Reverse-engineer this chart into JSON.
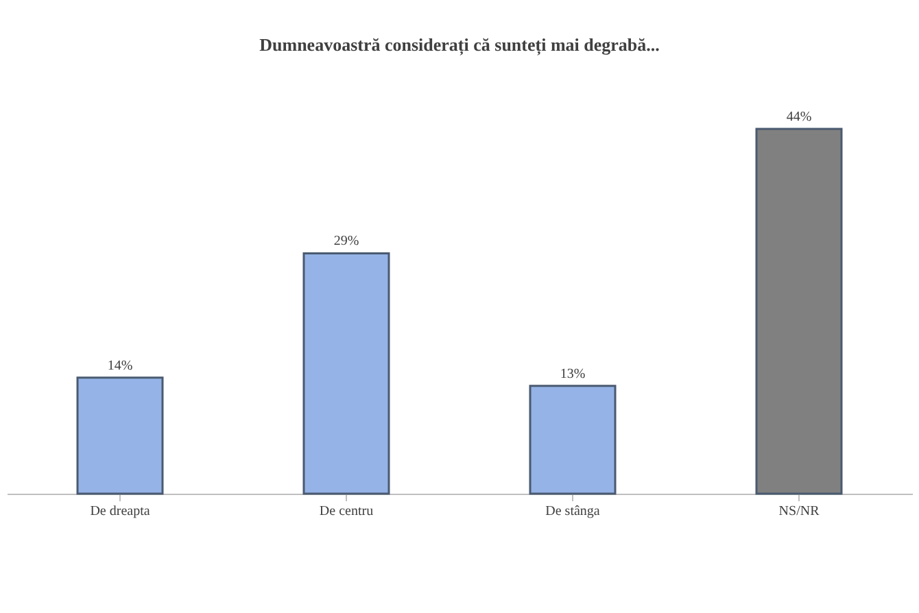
{
  "chart_data": {
    "type": "bar",
    "title": "Dumneavoastră considerați că sunteți mai degrabă...",
    "categories": [
      "De dreapta",
      "De centru",
      "De stânga",
      "NS/NR"
    ],
    "values": [
      14,
      29,
      13,
      44
    ],
    "colors": [
      "#95b3e6",
      "#95b3e6",
      "#95b3e6",
      "#808080"
    ],
    "value_labels": [
      "14%",
      "29%",
      "13%",
      "44%"
    ]
  }
}
